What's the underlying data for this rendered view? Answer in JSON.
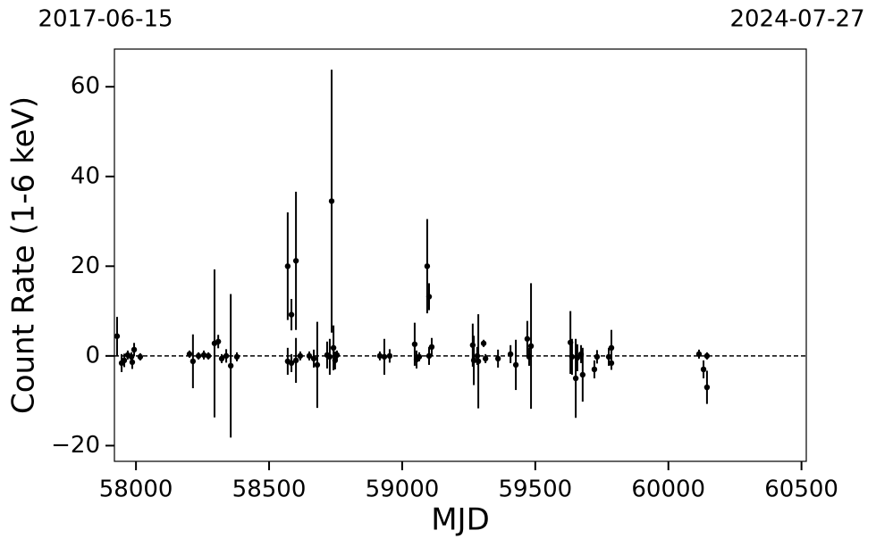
{
  "chart_data": {
    "type": "errorbar",
    "xlabel": "MJD",
    "ylabel": "Count Rate (1-6 keV)",
    "xlim": [
      57919,
      60518
    ],
    "ylim": [
      -23.5,
      68.4
    ],
    "xticks": [
      58000,
      58500,
      59000,
      59500,
      60000,
      60500
    ],
    "yticks": [
      {
        "value": -20,
        "label": "−20"
      },
      0,
      20,
      40,
      60
    ],
    "top_xticks": [
      {
        "value": 57919,
        "label": "2017-06-15"
      },
      {
        "value": 60518,
        "label": "2024-07-27"
      }
    ],
    "hline": 0,
    "color": "#000000",
    "x": [
      57929,
      57946,
      57956,
      57969,
      57983,
      57986,
      57993,
      58016,
      58201,
      58214,
      58235,
      58255,
      58272,
      58295,
      58309,
      58322,
      58339,
      58356,
      58379,
      58570,
      58570,
      58584,
      58584,
      58601,
      58601,
      58617,
      58651,
      58668,
      58681,
      58718,
      58728,
      58735,
      58742,
      58748,
      58755,
      58916,
      58933,
      58953,
      59047,
      59054,
      59064,
      59094,
      59101,
      59101,
      59111,
      59265,
      59269,
      59282,
      59286,
      59306,
      59313,
      59360,
      59407,
      59427,
      59470,
      59477,
      59484,
      59632,
      59638,
      59652,
      59658,
      59672,
      59678,
      59722,
      59732,
      59776,
      59786,
      59786,
      60115,
      60132,
      60145,
      60145
    ],
    "values": [
      4.4,
      -1.6,
      -1,
      0.2,
      -0.2,
      -1.4,
      1.4,
      -0.2,
      0.4,
      -1.2,
      0,
      0.2,
      0,
      2.8,
      3.2,
      -0.6,
      0,
      -2.2,
      -0.2,
      20,
      -1.2,
      9.2,
      -1.6,
      21.2,
      -1,
      0,
      0,
      -0.6,
      -2,
      0.2,
      -0.2,
      34.5,
      1.8,
      -1,
      0.2,
      0,
      -0.2,
      0,
      2.6,
      -0.8,
      -0.2,
      20,
      13.2,
      0,
      2,
      2.4,
      -1,
      0,
      -1.2,
      2.8,
      -0.6,
      -0.6,
      0.4,
      -2,
      3.8,
      -0.2,
      2.2,
      3,
      -0.2,
      -5,
      -0.4,
      0.4,
      -4.2,
      -3,
      -0.2,
      -0.2,
      1.8,
      -1.6,
      0.4,
      -3,
      0,
      -7
    ],
    "errors": [
      4.3,
      2,
      1.5,
      1,
      1,
      1.5,
      1.5,
      0.8,
      0.8,
      6,
      0.8,
      1,
      0.8,
      16.5,
      1.5,
      1,
      1.5,
      16,
      1,
      12,
      3,
      3.5,
      2,
      15.4,
      5,
      1,
      1,
      2,
      9.6,
      3,
      4,
      29.3,
      5,
      2,
      1,
      1,
      4,
      1.5,
      4.8,
      2,
      1,
      10.5,
      3,
      2,
      2,
      4.8,
      5.5,
      2,
      10.5,
      0.8,
      1,
      2,
      2,
      5.6,
      4,
      2,
      14,
      7,
      4,
      8.8,
      3,
      2,
      6,
      2,
      1.5,
      2,
      4,
      1.5,
      1,
      2,
      0.8,
      3.7
    ]
  }
}
